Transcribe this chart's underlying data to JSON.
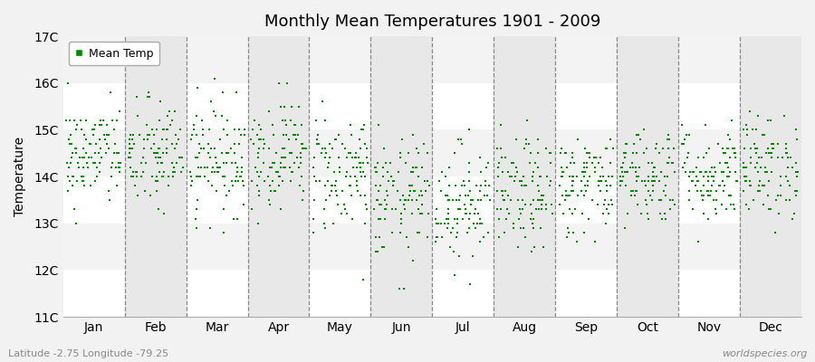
{
  "title": "Monthly Mean Temperatures 1901 - 2009",
  "ylabel": "Temperature",
  "footer_left": "Latitude -2.75 Longitude -79.25",
  "footer_right": "worldspecies.org",
  "legend_label": "Mean Temp",
  "months": [
    "Jan",
    "Feb",
    "Mar",
    "Apr",
    "May",
    "Jun",
    "Jul",
    "Aug",
    "Sep",
    "Oct",
    "Nov",
    "Dec"
  ],
  "ylim": [
    11,
    17
  ],
  "yticks": [
    11,
    12,
    13,
    14,
    15,
    16,
    17
  ],
  "ytick_labels": [
    "11C",
    "12C",
    "13C",
    "14C",
    "15C",
    "16C",
    "17C"
  ],
  "marker_color": "#008800",
  "background_color": "#f2f2f2",
  "band_color_odd": "#ffffff",
  "band_color_even": "#e8e8e8",
  "n_years": 109,
  "month_means": [
    14.45,
    14.45,
    14.4,
    14.5,
    14.1,
    13.5,
    13.45,
    13.6,
    13.85,
    14.05,
    14.05,
    14.2
  ],
  "month_stds": [
    0.55,
    0.6,
    0.6,
    0.58,
    0.65,
    0.65,
    0.62,
    0.6,
    0.55,
    0.52,
    0.52,
    0.55
  ],
  "random_seed": 42
}
